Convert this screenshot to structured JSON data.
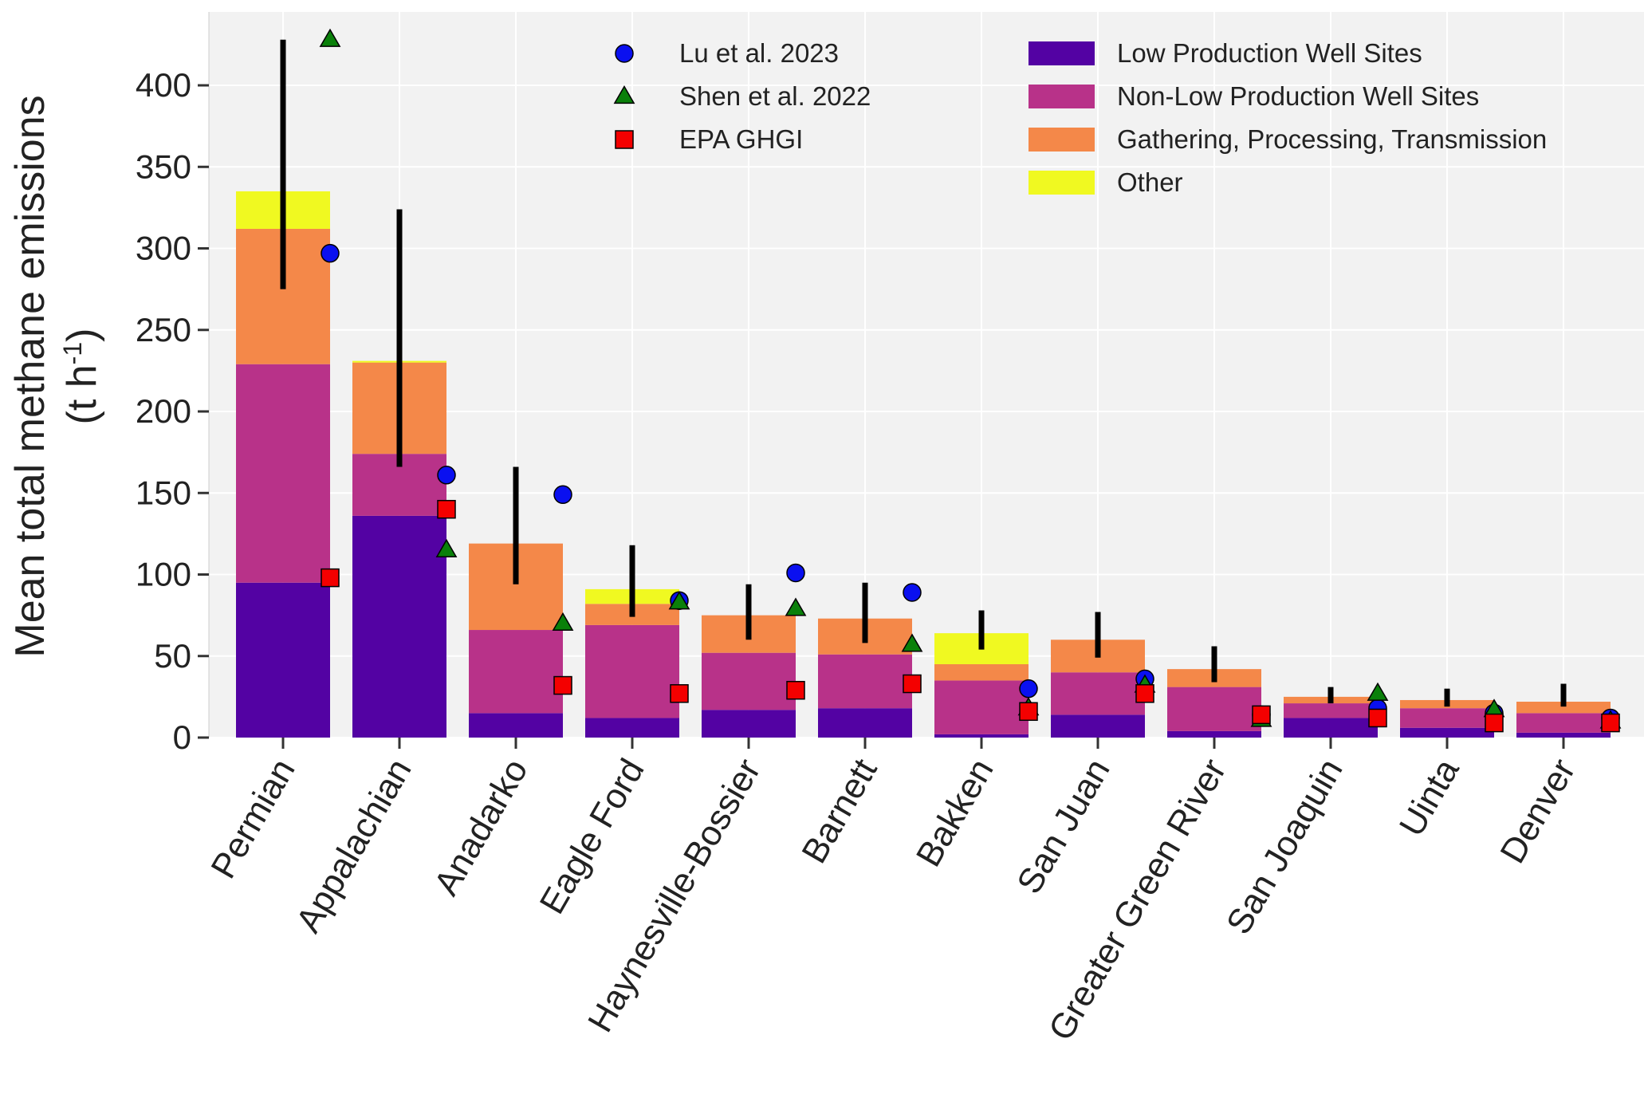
{
  "chart_data": {
    "type": "bar",
    "stacked": true,
    "ylabel": "Mean total methane emissions",
    "ylabel_unit": "(t h",
    "ylabel_unit_sup": "-1",
    "ylabel_unit_close": ")",
    "xlabel": "",
    "title": "",
    "ylim": [
      0,
      445
    ],
    "yticks": [
      0,
      50,
      100,
      150,
      200,
      250,
      300,
      350,
      400
    ],
    "grid": true,
    "legend_position": "top-right",
    "categories": [
      "Permian",
      "Appalachian",
      "Anadarko",
      "Eagle Ford",
      "Haynesville-Bossier",
      "Barnett",
      "Bakken",
      "San Juan",
      "Greater Green River",
      "San Joaquin",
      "Uinta",
      "Denver"
    ],
    "series": [
      {
        "name": "Low Production Well Sites",
        "color": "#5302a3",
        "values": [
          95,
          136,
          15,
          12,
          17,
          18,
          2,
          14,
          4,
          12,
          6,
          3
        ]
      },
      {
        "name": "Non-Low Production Well Sites",
        "color": "#b83289",
        "values": [
          134,
          38,
          51,
          57,
          35,
          33,
          33,
          26,
          27,
          9,
          12,
          12
        ]
      },
      {
        "name": "Gathering, Processing, Transmission",
        "color": "#f48849",
        "values": [
          83,
          56,
          53,
          13,
          23,
          22,
          10,
          20,
          11,
          4,
          5,
          7
        ]
      },
      {
        "name": "Other",
        "color": "#f0f921",
        "values": [
          23,
          1,
          0,
          9,
          0,
          0,
          19,
          0,
          0,
          0,
          0,
          0
        ]
      }
    ],
    "error_bars": {
      "color": "#000000",
      "low": [
        275,
        166,
        94,
        74,
        60,
        58,
        54,
        49,
        34,
        21,
        19,
        19
      ],
      "high": [
        428,
        324,
        166,
        118,
        94,
        95,
        78,
        77,
        56,
        31,
        30,
        33
      ]
    },
    "markers": [
      {
        "name": "Lu et al. 2023",
        "shape": "circle",
        "color": "#0a10f0",
        "values": [
          297,
          161,
          149,
          84,
          101,
          89,
          30,
          36,
          14,
          18,
          15,
          12
        ]
      },
      {
        "name": "Shen et al. 2022",
        "shape": "triangle",
        "color": "#0a800a",
        "values": [
          428,
          115,
          70,
          83,
          79,
          57,
          18,
          32,
          11,
          27,
          17,
          10
        ]
      },
      {
        "name": "EPA GHGI",
        "shape": "square",
        "color": "#f40000",
        "values": [
          98,
          140,
          32,
          27,
          29,
          33,
          16,
          27,
          14,
          12,
          9,
          9
        ]
      }
    ]
  }
}
